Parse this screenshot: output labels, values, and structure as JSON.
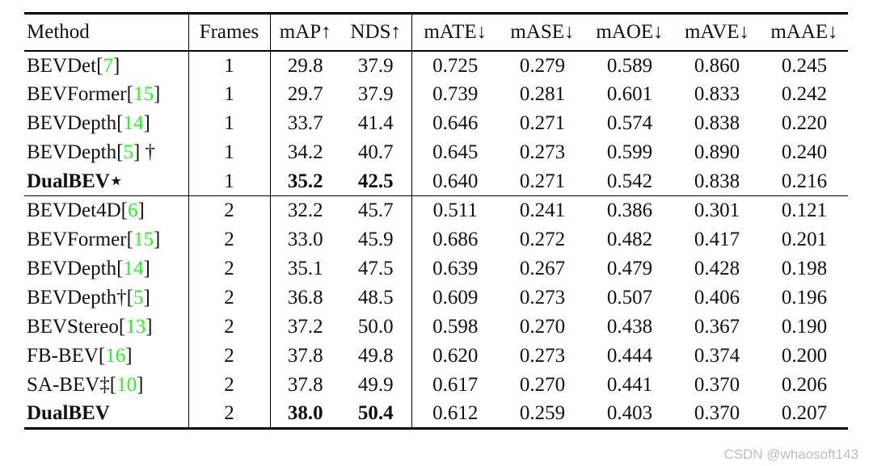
{
  "colors": {
    "citation_green": "#1aff1a",
    "text_black": "#111111",
    "watermark_gray": "#bdbdbd"
  },
  "watermark": "CSDN @whaosoft143",
  "table": {
    "citation_open": "[",
    "citation_close": "]",
    "columns": [
      "Method",
      "Frames",
      "mAP↑",
      "NDS↑",
      "mATE↓",
      "mASE↓",
      "mAOE↓",
      "mAVE↓",
      "mAAE↓"
    ],
    "groups": [
      {
        "rows": [
          {
            "name": "BEVDet",
            "cite": "7",
            "suffix": "",
            "bold": false,
            "frames": "1",
            "map": "29.8",
            "nds": "37.9",
            "errors": [
              "0.725",
              "0.279",
              "0.589",
              "0.860",
              "0.245"
            ]
          },
          {
            "name": "BEVFormer",
            "cite": "15",
            "suffix": "",
            "bold": false,
            "frames": "1",
            "map": "29.7",
            "nds": "37.9",
            "errors": [
              "0.739",
              "0.281",
              "0.601",
              "0.833",
              "0.242"
            ]
          },
          {
            "name": "BEVDepth",
            "cite": "14",
            "suffix": "",
            "bold": false,
            "frames": "1",
            "map": "33.7",
            "nds": "41.4",
            "errors": [
              "0.646",
              "0.271",
              "0.574",
              "0.838",
              "0.220"
            ]
          },
          {
            "name": "BEVDepth",
            "cite": "5",
            "suffix": " †",
            "bold": false,
            "frames": "1",
            "map": "34.2",
            "nds": "40.7",
            "errors": [
              "0.645",
              "0.273",
              "0.599",
              "0.890",
              "0.240"
            ]
          },
          {
            "name": "DualBEV",
            "cite": "",
            "suffix": "⋆",
            "bold": true,
            "frames": "1",
            "map": "35.2",
            "nds": "42.5",
            "errors": [
              "0.640",
              "0.271",
              "0.542",
              "0.838",
              "0.216"
            ]
          }
        ]
      },
      {
        "rows": [
          {
            "name": "BEVDet4D",
            "cite": "6",
            "suffix": "",
            "bold": false,
            "frames": "2",
            "map": "32.2",
            "nds": "45.7",
            "errors": [
              "0.511",
              "0.241",
              "0.386",
              "0.301",
              "0.121"
            ]
          },
          {
            "name": "BEVFormer",
            "cite": "15",
            "suffix": "",
            "bold": false,
            "frames": "2",
            "map": "33.0",
            "nds": "45.9",
            "errors": [
              "0.686",
              "0.272",
              "0.482",
              "0.417",
              "0.201"
            ]
          },
          {
            "name": "BEVDepth",
            "cite": "14",
            "suffix": "",
            "bold": false,
            "frames": "2",
            "map": "35.1",
            "nds": "47.5",
            "errors": [
              "0.639",
              "0.267",
              "0.479",
              "0.428",
              "0.198"
            ]
          },
          {
            "name": "BEVDepth†",
            "cite": "5",
            "suffix": "",
            "bold": false,
            "frames": "2",
            "map": "36.8",
            "nds": "48.5",
            "errors": [
              "0.609",
              "0.273",
              "0.507",
              "0.406",
              "0.196"
            ]
          },
          {
            "name": "BEVStereo",
            "cite": "13",
            "suffix": "",
            "bold": false,
            "frames": "2",
            "map": "37.2",
            "nds": "50.0",
            "errors": [
              "0.598",
              "0.270",
              "0.438",
              "0.367",
              "0.190"
            ]
          },
          {
            "name": "FB-BEV",
            "cite": "16",
            "suffix": "",
            "bold": false,
            "frames": "2",
            "map": "37.8",
            "nds": "49.8",
            "errors": [
              "0.620",
              "0.273",
              "0.444",
              "0.374",
              "0.200"
            ]
          },
          {
            "name": "SA-BEV‡",
            "cite": "10",
            "suffix": "",
            "bold": false,
            "frames": "2",
            "map": "37.8",
            "nds": "49.9",
            "errors": [
              "0.617",
              "0.270",
              "0.441",
              "0.370",
              "0.206"
            ]
          },
          {
            "name": "DualBEV",
            "cite": "",
            "suffix": "",
            "bold": true,
            "frames": "2",
            "map": "38.0",
            "nds": "50.4",
            "errors": [
              "0.612",
              "0.259",
              "0.403",
              "0.370",
              "0.207"
            ]
          }
        ]
      }
    ]
  }
}
